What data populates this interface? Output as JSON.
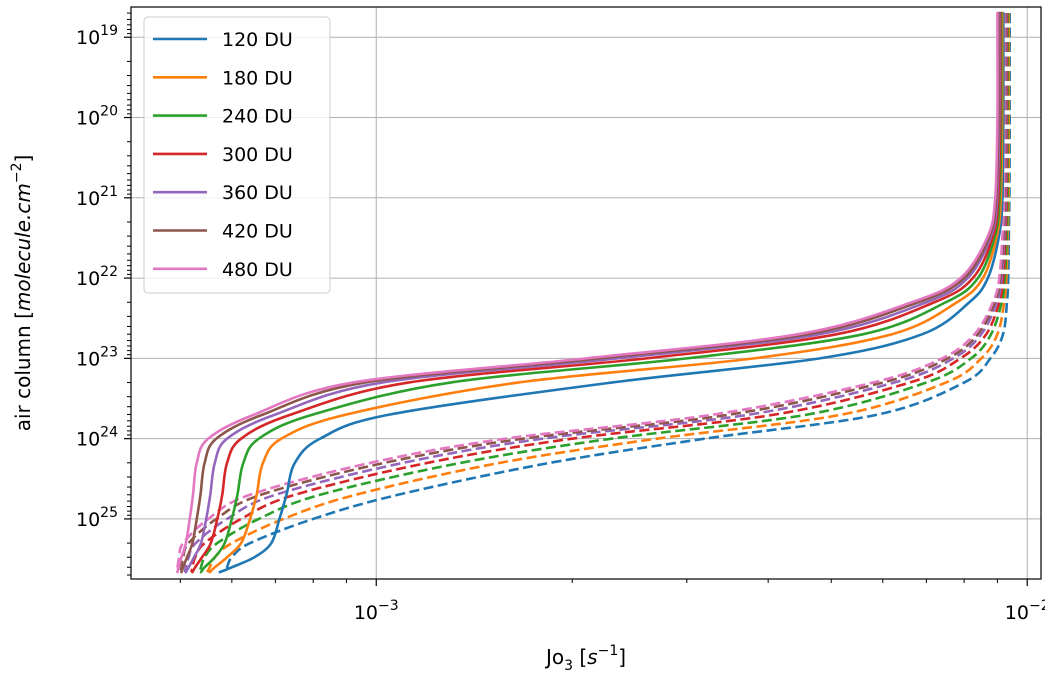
{
  "chart_data": {
    "type": "line",
    "x_axis": {
      "label_prefix": "Jo",
      "label_sub": "3",
      "label_unit_open": " [",
      "label_unit_var": "s",
      "label_unit_exp": "−1",
      "label_unit_close": "]",
      "scale": "log",
      "xlim": [
        0.00042,
        0.0105
      ],
      "ticks": [
        {
          "value": 0.001,
          "base": "10",
          "exp": "−3"
        },
        {
          "value": 0.01,
          "base": "10",
          "exp": "−2"
        }
      ]
    },
    "y_axis": {
      "label_prefix": "air column [",
      "label_var": "molecule.cm",
      "label_exp": "−2",
      "label_suffix": "]",
      "scale": "log",
      "inverted": true,
      "ylim": [
        4.2e+18,
        5.6e+25
      ],
      "ticks": [
        {
          "value": 1e+19,
          "base": "10",
          "exp": "19"
        },
        {
          "value": 1e+20,
          "base": "10",
          "exp": "20"
        },
        {
          "value": 1e+21,
          "base": "10",
          "exp": "21"
        },
        {
          "value": 1e+22,
          "base": "10",
          "exp": "22"
        },
        {
          "value": 1e+23,
          "base": "10",
          "exp": "23"
        },
        {
          "value": 1e+24,
          "base": "10",
          "exp": "24"
        },
        {
          "value": 1e+25,
          "base": "10",
          "exp": "25"
        }
      ]
    },
    "grid": true,
    "legend_position": "top-left",
    "y_values": [
      5e+18,
      1e+19,
      1e+20,
      1e+21,
      3e+21,
      1e+22,
      2e+22,
      5e+22,
      1e+23,
      2e+23,
      5e+23,
      1e+24,
      2e+24,
      5e+24,
      1e+25,
      2e+25,
      3e+25,
      4e+25,
      4.6e+25
    ],
    "series": [
      {
        "name": "120 DU",
        "color": "#1f77b4",
        "solid": [
          0.00919,
          0.00919,
          0.00919,
          0.00916,
          0.00905,
          0.0087,
          0.00815,
          0.0069,
          0.0048,
          0.0023,
          0.00105,
          0.00082,
          0.00075,
          0.000728,
          0.00071,
          0.00069,
          0.00065,
          0.0006,
          0.000575
        ],
        "dashed": [
          0.0094,
          0.0094,
          0.0094,
          0.00939,
          0.00937,
          0.00935,
          0.00931,
          0.00918,
          0.00878,
          0.008,
          0.0059,
          0.0032,
          0.00185,
          0.00108,
          0.0008,
          0.00064,
          0.0006,
          0.00059,
          0.000585
        ]
      },
      {
        "name": "180 DU",
        "color": "#ff7f0e",
        "solid": [
          0.00915,
          0.00915,
          0.00915,
          0.00911,
          0.00898,
          0.00855,
          0.0078,
          0.0062,
          0.0038,
          0.00165,
          0.0009,
          0.000715,
          0.00067,
          0.000655,
          0.00064,
          0.00062,
          0.00059,
          0.000565,
          0.000555
        ],
        "dashed": [
          0.00937,
          0.00937,
          0.00937,
          0.00936,
          0.00933,
          0.00929,
          0.00922,
          0.009,
          0.0085,
          0.0075,
          0.0052,
          0.0027,
          0.00155,
          0.00093,
          0.00072,
          0.0006,
          0.000565,
          0.000555,
          0.00055
        ]
      },
      {
        "name": "240 DU",
        "color": "#2ca02c",
        "solid": [
          0.00912,
          0.00912,
          0.00912,
          0.00907,
          0.00892,
          0.0084,
          0.0075,
          0.0056,
          0.003,
          0.0013,
          0.0008,
          0.00066,
          0.000625,
          0.000612,
          0.0006,
          0.000585,
          0.000565,
          0.000545,
          0.000538
        ],
        "dashed": [
          0.00934,
          0.00934,
          0.00934,
          0.00933,
          0.0093,
          0.00924,
          0.00914,
          0.0088,
          0.0082,
          0.007,
          0.0046,
          0.0023,
          0.00135,
          0.00082,
          0.00066,
          0.00057,
          0.000545,
          0.000538,
          0.000535
        ]
      },
      {
        "name": "300 DU",
        "color": "#d62728",
        "solid": [
          0.00909,
          0.00909,
          0.00909,
          0.00903,
          0.00886,
          0.00825,
          0.0072,
          0.0051,
          0.0026,
          0.00112,
          0.00074,
          0.00062,
          0.00059,
          0.00058,
          0.00057,
          0.000557,
          0.00054,
          0.000527,
          0.000522
        ],
        "dashed": [
          0.00931,
          0.00931,
          0.00931,
          0.0093,
          0.00926,
          0.00919,
          0.00906,
          0.00865,
          0.0079,
          0.0066,
          0.0041,
          0.002,
          0.0012,
          0.00075,
          0.00062,
          0.000545,
          0.000527,
          0.000522,
          0.00052
        ]
      },
      {
        "name": "360 DU",
        "color": "#9467bd",
        "solid": [
          0.00906,
          0.00906,
          0.00906,
          0.00899,
          0.0088,
          0.0081,
          0.007,
          0.0048,
          0.00235,
          0.00102,
          0.0007,
          0.00059,
          0.000565,
          0.000556,
          0.000548,
          0.000538,
          0.000525,
          0.000515,
          0.00051
        ],
        "dashed": [
          0.00928,
          0.00928,
          0.00928,
          0.00927,
          0.00922,
          0.00914,
          0.00898,
          0.0085,
          0.0077,
          0.00625,
          0.00375,
          0.0018,
          0.0011,
          0.0007,
          0.00059,
          0.000528,
          0.000515,
          0.00051,
          0.000508
        ]
      },
      {
        "name": "420 DU",
        "color": "#8c564b",
        "solid": [
          0.00903,
          0.00903,
          0.00903,
          0.00896,
          0.00875,
          0.008,
          0.0068,
          0.0046,
          0.0022,
          0.00096,
          0.00067,
          0.000568,
          0.000545,
          0.000537,
          0.00053,
          0.000522,
          0.000512,
          0.000505,
          0.000502
        ],
        "dashed": [
          0.00925,
          0.00925,
          0.00925,
          0.00924,
          0.00919,
          0.0091,
          0.00892,
          0.0084,
          0.00755,
          0.006,
          0.0035,
          0.00168,
          0.00103,
          0.000665,
          0.000568,
          0.000515,
          0.000505,
          0.000502,
          0.0005
        ]
      },
      {
        "name": "480 DU",
        "color": "#e377c2",
        "solid": [
          0.009,
          0.009,
          0.009,
          0.00893,
          0.0087,
          0.0079,
          0.00665,
          0.00445,
          0.0021,
          0.00092,
          0.00065,
          0.000552,
          0.00053,
          0.000523,
          0.000517,
          0.00051,
          0.000502,
          0.000497,
          0.000495
        ],
        "dashed": [
          0.00922,
          0.00922,
          0.00922,
          0.00921,
          0.00916,
          0.00906,
          0.00886,
          0.0083,
          0.0074,
          0.0058,
          0.0033,
          0.00158,
          0.00098,
          0.00064,
          0.000552,
          0.000505,
          0.000498,
          0.000495,
          0.000493
        ]
      }
    ]
  }
}
